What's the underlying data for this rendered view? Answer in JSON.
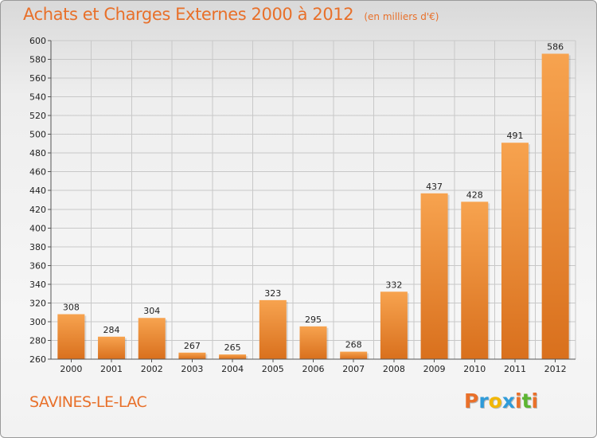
{
  "chart_data": {
    "type": "bar",
    "title": "Achats et Charges Externes 2000 à 2012",
    "unit": "(en milliers d'€)",
    "categories": [
      "2000",
      "2001",
      "2002",
      "2003",
      "2004",
      "2005",
      "2006",
      "2007",
      "2008",
      "2009",
      "2010",
      "2011",
      "2012"
    ],
    "values": [
      308,
      284,
      304,
      267,
      265,
      323,
      295,
      268,
      332,
      437,
      428,
      491,
      586
    ],
    "ylim": [
      260,
      600
    ],
    "yticks": [
      260,
      280,
      300,
      320,
      340,
      360,
      380,
      400,
      420,
      440,
      460,
      480,
      500,
      520,
      540,
      560,
      580,
      600
    ],
    "grid": true,
    "bar_color_top": "#f7a34f",
    "bar_color_bottom": "#d9701d",
    "title_color": "#e8702a"
  },
  "place": "SAVINES-LE-LAC",
  "brand": {
    "letters": [
      "P",
      "r",
      "o",
      "x",
      "i",
      "t",
      "i"
    ],
    "colors": [
      "#e9702a",
      "#2f9bd9",
      "#f2b705",
      "#2f9bd9",
      "#e9702a",
      "#5cb531",
      "#e9702a"
    ]
  }
}
